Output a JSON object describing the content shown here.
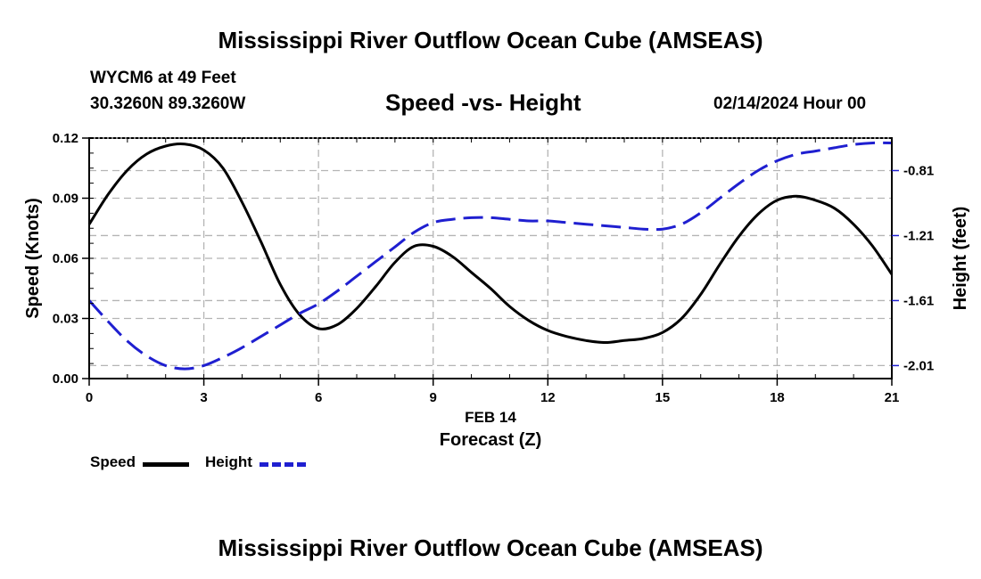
{
  "page": {
    "title": "Mississippi River Outflow Ocean Cube (AMSEAS)",
    "footer_title": "Mississippi River Outflow Ocean Cube (AMSEAS)",
    "station": "WYCM6 at 49 Feet",
    "coords": "30.3260N  89.3260W",
    "chart_title": "Speed -vs- Height",
    "date": "02/14/2024 Hour 00"
  },
  "legend": {
    "speed_label": "Speed",
    "height_label": "Height"
  },
  "colors": {
    "speed": "#000000",
    "height": "#1f1fd0",
    "grid": "#b4b4b4"
  },
  "chart_data": {
    "type": "line",
    "title": "Speed -vs- Height",
    "xlabel": "Forecast (Z)",
    "xsublabel": "FEB 14",
    "ylabel": "Speed (Knots)",
    "y2label": "Height (feet)",
    "xlim": [
      0,
      21
    ],
    "ylim": [
      0,
      0.12
    ],
    "y2lim": [
      -2.09,
      -0.61
    ],
    "x_ticks": [
      0,
      3,
      6,
      9,
      12,
      15,
      18,
      21
    ],
    "x_tick_labels": [
      "0",
      "3",
      "6",
      "9",
      "12",
      "15",
      "18",
      "21"
    ],
    "y_ticks": [
      0,
      0.03,
      0.06,
      0.09,
      0.12
    ],
    "y_tick_labels": [
      "0.00",
      "0.03",
      "0.06",
      "0.09",
      "0.12"
    ],
    "y2_ticks": [
      -2.01,
      -1.61,
      -1.21,
      -0.81
    ],
    "y2_tick_labels": [
      "-2.01",
      "-1.61",
      "-1.21",
      "-0.81"
    ],
    "grid": true,
    "series": [
      {
        "name": "Speed",
        "axis": "left",
        "style": "solid",
        "x": [
          0,
          0.5,
          1,
          1.5,
          2,
          2.5,
          3,
          3.5,
          4,
          4.5,
          5,
          5.5,
          6,
          6.5,
          7,
          7.5,
          8,
          8.5,
          9,
          9.5,
          10,
          10.5,
          11,
          11.5,
          12,
          12.5,
          13,
          13.5,
          14,
          14.5,
          15,
          15.5,
          16,
          16.5,
          17,
          17.5,
          18,
          18.5,
          19,
          19.5,
          20,
          20.5,
          21
        ],
        "values": [
          0.077,
          0.092,
          0.104,
          0.112,
          0.116,
          0.117,
          0.114,
          0.105,
          0.088,
          0.068,
          0.047,
          0.032,
          0.025,
          0.027,
          0.035,
          0.046,
          0.058,
          0.066,
          0.066,
          0.061,
          0.053,
          0.045,
          0.036,
          0.029,
          0.024,
          0.021,
          0.019,
          0.018,
          0.019,
          0.02,
          0.023,
          0.03,
          0.042,
          0.057,
          0.071,
          0.082,
          0.089,
          0.091,
          0.089,
          0.085,
          0.077,
          0.066,
          0.052
        ]
      },
      {
        "name": "Height",
        "axis": "right",
        "style": "dashed",
        "x": [
          0,
          0.5,
          1,
          1.5,
          2,
          2.5,
          3,
          3.5,
          4,
          4.5,
          5,
          5.5,
          6,
          6.5,
          7,
          7.5,
          8,
          8.5,
          9,
          9.5,
          10,
          10.5,
          11,
          11.5,
          12,
          12.5,
          13,
          13.5,
          14,
          14.5,
          15,
          15.5,
          16,
          16.5,
          17,
          17.5,
          18,
          18.5,
          19,
          19.5,
          20,
          20.5,
          21
        ],
        "values": [
          -1.61,
          -1.74,
          -1.86,
          -1.95,
          -2.01,
          -2.03,
          -2.01,
          -1.96,
          -1.9,
          -1.83,
          -1.76,
          -1.69,
          -1.63,
          -1.55,
          -1.46,
          -1.37,
          -1.28,
          -1.19,
          -1.13,
          -1.11,
          -1.1,
          -1.1,
          -1.11,
          -1.12,
          -1.12,
          -1.13,
          -1.14,
          -1.15,
          -1.16,
          -1.17,
          -1.17,
          -1.14,
          -1.07,
          -0.98,
          -0.89,
          -0.81,
          -0.75,
          -0.71,
          -0.69,
          -0.67,
          -0.65,
          -0.64,
          -0.64
        ]
      }
    ]
  }
}
